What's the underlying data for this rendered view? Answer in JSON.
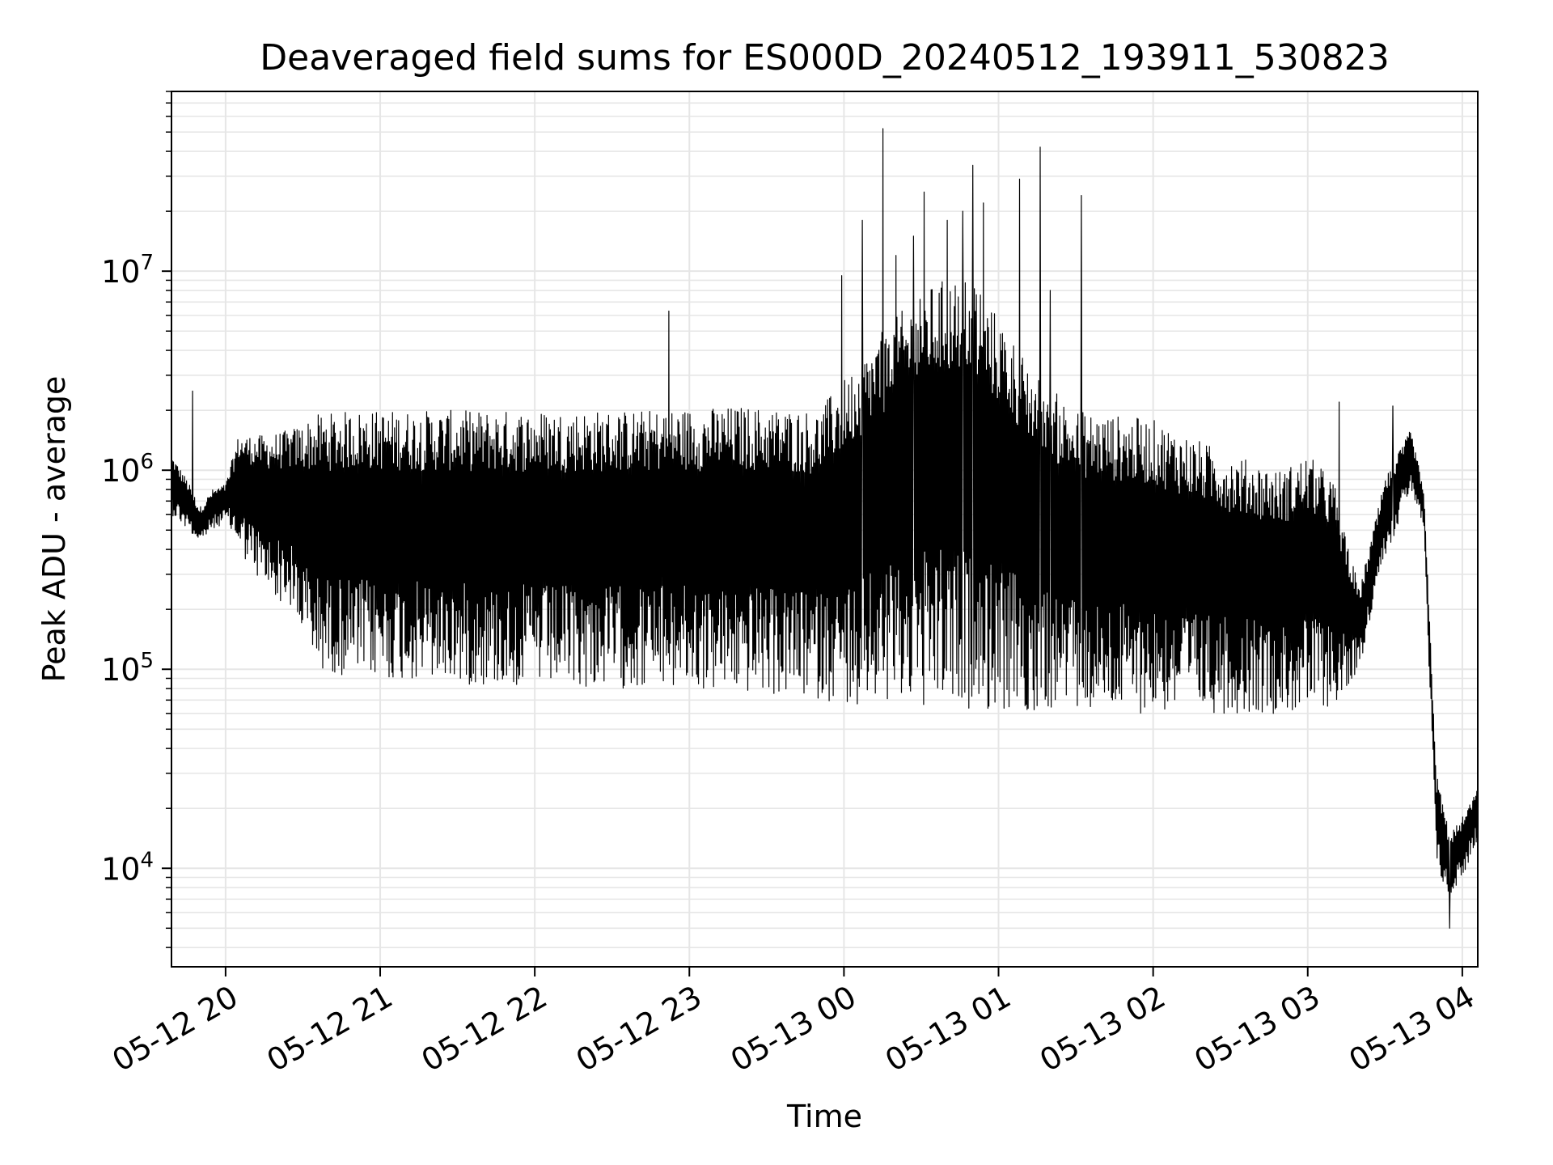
{
  "chart_data": {
    "type": "line",
    "title": "Deaveraged field sums for ES000D_20240512_193911_530823",
    "xlabel": "Time",
    "ylabel": "Peak ADU - average",
    "xscale": "time",
    "yscale": "log",
    "xlim": [
      "2024-05-12 19:39",
      "2024-05-13 04:06"
    ],
    "ylim": [
      3200,
      80000000
    ],
    "grid": true,
    "legend": "none",
    "line_color": "#000000",
    "grid_color": "#e6e6e6",
    "x_ticks": [
      {
        "value": "2024-05-12 20:00",
        "label": "05-12 20"
      },
      {
        "value": "2024-05-12 21:00",
        "label": "05-12 21"
      },
      {
        "value": "2024-05-12 22:00",
        "label": "05-12 22"
      },
      {
        "value": "2024-05-12 23:00",
        "label": "05-12 23"
      },
      {
        "value": "2024-05-13 00:00",
        "label": "05-13 00"
      },
      {
        "value": "2024-05-13 01:00",
        "label": "05-13 01"
      },
      {
        "value": "2024-05-13 02:00",
        "label": "05-13 02"
      },
      {
        "value": "2024-05-13 03:00",
        "label": "05-13 03"
      },
      {
        "value": "2024-05-13 04:00",
        "label": "05-13 04"
      }
    ],
    "y_ticks": [
      {
        "value": 10000,
        "base": "10",
        "exp": "4"
      },
      {
        "value": 100000,
        "base": "10",
        "exp": "5"
      },
      {
        "value": 1000000,
        "base": "10",
        "exp": "6"
      },
      {
        "value": 10000000,
        "base": "10",
        "exp": "7"
      }
    ],
    "envelope": {
      "points": [
        {
          "t": "2024-05-12 19:39",
          "high": 1200000,
          "low": 600000
        },
        {
          "t": "2024-05-12 19:45",
          "high": 900000,
          "low": 500000
        },
        {
          "t": "2024-05-12 19:50",
          "high": 650000,
          "low": 430000
        },
        {
          "t": "2024-05-12 19:55",
          "high": 800000,
          "low": 500000
        },
        {
          "t": "2024-05-12 20:00",
          "high": 850000,
          "low": 550000
        },
        {
          "t": "2024-05-12 20:05",
          "high": 1500000,
          "low": 400000
        },
        {
          "t": "2024-05-12 20:15",
          "high": 1500000,
          "low": 250000
        },
        {
          "t": "2024-05-12 20:25",
          "high": 1600000,
          "low": 200000
        },
        {
          "t": "2024-05-12 20:35",
          "high": 1900000,
          "low": 100000
        },
        {
          "t": "2024-05-12 20:50",
          "high": 2000000,
          "low": 90000
        },
        {
          "t": "2024-05-12 21:20",
          "high": 2000000,
          "low": 85000
        },
        {
          "t": "2024-05-12 22:00",
          "high": 2000000,
          "low": 80000
        },
        {
          "t": "2024-05-12 22:40",
          "high": 2000000,
          "low": 80000
        },
        {
          "t": "2024-05-12 23:20",
          "high": 2100000,
          "low": 75000
        },
        {
          "t": "2024-05-12 23:50",
          "high": 2000000,
          "low": 70000
        },
        {
          "t": "2024-05-13 00:15",
          "high": 5000000,
          "low": 65000
        },
        {
          "t": "2024-05-13 00:30",
          "high": 8000000,
          "low": 65000
        },
        {
          "t": "2024-05-13 00:45",
          "high": 10000000,
          "low": 60000
        },
        {
          "t": "2024-05-13 01:00",
          "high": 6000000,
          "low": 60000
        },
        {
          "t": "2024-05-13 01:15",
          "high": 3000000,
          "low": 60000
        },
        {
          "t": "2024-05-13 01:30",
          "high": 2000000,
          "low": 60000
        },
        {
          "t": "2024-05-13 02:00",
          "high": 1800000,
          "low": 60000
        },
        {
          "t": "2024-05-13 02:30",
          "high": 1200000,
          "low": 60000
        },
        {
          "t": "2024-05-13 02:50",
          "high": 1000000,
          "low": 60000
        },
        {
          "t": "2024-05-13 03:00",
          "high": 1200000,
          "low": 60000
        },
        {
          "t": "2024-05-13 03:10",
          "high": 900000,
          "low": 65000
        },
        {
          "t": "2024-05-13 03:20",
          "high": 250000,
          "low": 100000
        },
        {
          "t": "2024-05-13 03:30",
          "high": 900000,
          "low": 350000
        },
        {
          "t": "2024-05-13 03:40",
          "high": 1600000,
          "low": 800000
        },
        {
          "t": "2024-05-13 03:45",
          "high": 800000,
          "low": 500000
        },
        {
          "t": "2024-05-13 03:50",
          "high": 30000,
          "low": 10000
        },
        {
          "t": "2024-05-13 03:55",
          "high": 15000,
          "low": 7000
        },
        {
          "t": "2024-05-13 04:00",
          "high": 18000,
          "low": 9000
        },
        {
          "t": "2024-05-13 04:06",
          "high": 25000,
          "low": 14000
        }
      ],
      "spikes": [
        {
          "t": "2024-05-12 19:47",
          "value": 2500000
        },
        {
          "t": "2024-05-12 22:52",
          "value": 6300000
        },
        {
          "t": "2024-05-12 23:59",
          "value": 9500000
        },
        {
          "t": "2024-05-13 00:07",
          "value": 18000000
        },
        {
          "t": "2024-05-13 00:15",
          "value": 52000000
        },
        {
          "t": "2024-05-13 00:20",
          "value": 12000000
        },
        {
          "t": "2024-05-13 00:27",
          "value": 15000000
        },
        {
          "t": "2024-05-13 00:31",
          "value": 25000000
        },
        {
          "t": "2024-05-13 00:40",
          "value": 18000000
        },
        {
          "t": "2024-05-13 00:46",
          "value": 20000000
        },
        {
          "t": "2024-05-13 00:50",
          "value": 34000000
        },
        {
          "t": "2024-05-13 00:54",
          "value": 22000000
        },
        {
          "t": "2024-05-13 01:08",
          "value": 29000000
        },
        {
          "t": "2024-05-13 01:16",
          "value": 42000000
        },
        {
          "t": "2024-05-13 01:20",
          "value": 8000000
        },
        {
          "t": "2024-05-13 01:32",
          "value": 24000000
        },
        {
          "t": "2024-05-13 03:12",
          "value": 2200000
        },
        {
          "t": "2024-05-13 03:33",
          "value": 2100000
        },
        {
          "t": "2024-05-13 03:55",
          "value": 5000
        }
      ]
    }
  }
}
